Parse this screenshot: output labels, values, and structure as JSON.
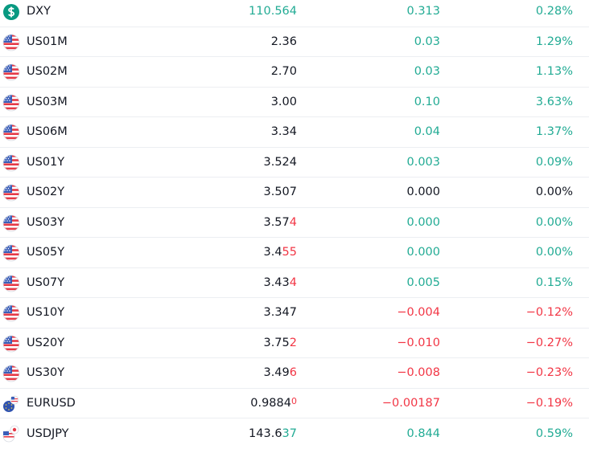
{
  "table": {
    "rows": [
      {
        "icon": "dollar",
        "symbol": "DXY",
        "last": [
          {
            "text": "110.564",
            "color": "#22ab94"
          }
        ],
        "change": "0.313",
        "change_pct": "0.28%",
        "color": "#22ab94"
      },
      {
        "icon": "us",
        "symbol": "US01M",
        "last": [
          {
            "text": "2.36",
            "color": "#131722"
          }
        ],
        "change": "0.03",
        "change_pct": "1.29%",
        "color": "#22ab94"
      },
      {
        "icon": "us",
        "symbol": "US02M",
        "last": [
          {
            "text": "2.70",
            "color": "#131722"
          }
        ],
        "change": "0.03",
        "change_pct": "1.13%",
        "color": "#22ab94"
      },
      {
        "icon": "us",
        "symbol": "US03M",
        "last": [
          {
            "text": "3.00",
            "color": "#131722"
          }
        ],
        "change": "0.10",
        "change_pct": "3.63%",
        "color": "#22ab94"
      },
      {
        "icon": "us",
        "symbol": "US06M",
        "last": [
          {
            "text": "3.34",
            "color": "#131722"
          }
        ],
        "change": "0.04",
        "change_pct": "1.37%",
        "color": "#22ab94"
      },
      {
        "icon": "us",
        "symbol": "US01Y",
        "last": [
          {
            "text": "3.524",
            "color": "#131722"
          }
        ],
        "change": "0.003",
        "change_pct": "0.09%",
        "color": "#22ab94"
      },
      {
        "icon": "us",
        "symbol": "US02Y",
        "last": [
          {
            "text": "3.507",
            "color": "#131722"
          }
        ],
        "change": "0.000",
        "change_pct": "0.00%",
        "color": "#131722"
      },
      {
        "icon": "us",
        "symbol": "US03Y",
        "last": [
          {
            "text": "3.57",
            "color": "#131722"
          },
          {
            "text": "4",
            "color": "#f23645"
          }
        ],
        "change": "0.000",
        "change_pct": "0.00%",
        "color": "#22ab94"
      },
      {
        "icon": "us",
        "symbol": "US05Y",
        "last": [
          {
            "text": "3.4",
            "color": "#131722"
          },
          {
            "text": "55",
            "color": "#f23645"
          }
        ],
        "change": "0.000",
        "change_pct": "0.00%",
        "color": "#22ab94"
      },
      {
        "icon": "us",
        "symbol": "US07Y",
        "last": [
          {
            "text": "3.43",
            "color": "#131722"
          },
          {
            "text": "4",
            "color": "#f23645"
          }
        ],
        "change": "0.005",
        "change_pct": "0.15%",
        "color": "#22ab94"
      },
      {
        "icon": "us",
        "symbol": "US10Y",
        "last": [
          {
            "text": "3.347",
            "color": "#131722"
          }
        ],
        "change": "−0.004",
        "change_pct": "−0.12%",
        "color": "#f23645"
      },
      {
        "icon": "us",
        "symbol": "US20Y",
        "last": [
          {
            "text": "3.75",
            "color": "#131722"
          },
          {
            "text": "2",
            "color": "#f23645"
          }
        ],
        "change": "−0.010",
        "change_pct": "−0.27%",
        "color": "#f23645"
      },
      {
        "icon": "us",
        "symbol": "US30Y",
        "last": [
          {
            "text": "3.49",
            "color": "#131722"
          },
          {
            "text": "6",
            "color": "#f23645"
          }
        ],
        "change": "−0.008",
        "change_pct": "−0.23%",
        "color": "#f23645"
      },
      {
        "icon": "eur",
        "symbol": "EURUSD",
        "last": [
          {
            "text": "0.9884",
            "color": "#131722"
          },
          {
            "text": "0",
            "color": "#f23645"
          }
        ],
        "change": "−0.00187",
        "change_pct": "−0.19%",
        "color": "#f23645"
      },
      {
        "icon": "jp",
        "symbol": "USDJPY",
        "last": [
          {
            "text": "143.6",
            "color": "#131722"
          },
          {
            "text": "37",
            "color": "#22ab94"
          }
        ],
        "change": "0.844",
        "change_pct": "0.59%",
        "color": "#22ab94"
      }
    ]
  }
}
